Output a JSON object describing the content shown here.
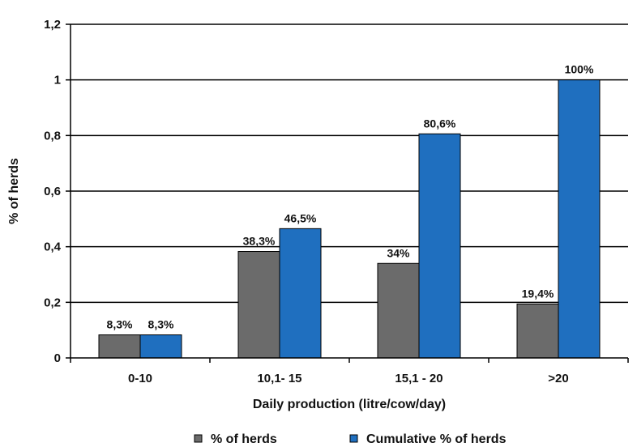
{
  "chart_data": {
    "type": "bar",
    "categories": [
      "0-10",
      "10,1- 15",
      "15,1 - 20",
      ">20"
    ],
    "series": [
      {
        "name": "% of herds",
        "values": [
          0.083,
          0.383,
          0.34,
          0.194
        ],
        "labels": [
          "8,3%",
          "38,3%",
          "34%",
          "19,4%"
        ],
        "color": "#6b6b6b"
      },
      {
        "name": "Cumulative % of herds",
        "values": [
          0.083,
          0.465,
          0.806,
          1.0
        ],
        "labels": [
          "8,3%",
          "46,5%",
          "80,6%",
          "100%"
        ],
        "color": "#1f6fbf"
      }
    ],
    "ylim": [
      0,
      1.2
    ],
    "yticks": [
      0,
      0.2,
      0.4,
      0.6,
      0.8,
      1,
      1.2
    ],
    "ytick_labels": [
      "0",
      "0,2",
      "0,4",
      "0,6",
      "0,8",
      "1",
      "1,2"
    ],
    "xlabel": "Daily production (litre/cow/day)",
    "ylabel": "% of herds",
    "grid": true,
    "legend": "bottom"
  }
}
